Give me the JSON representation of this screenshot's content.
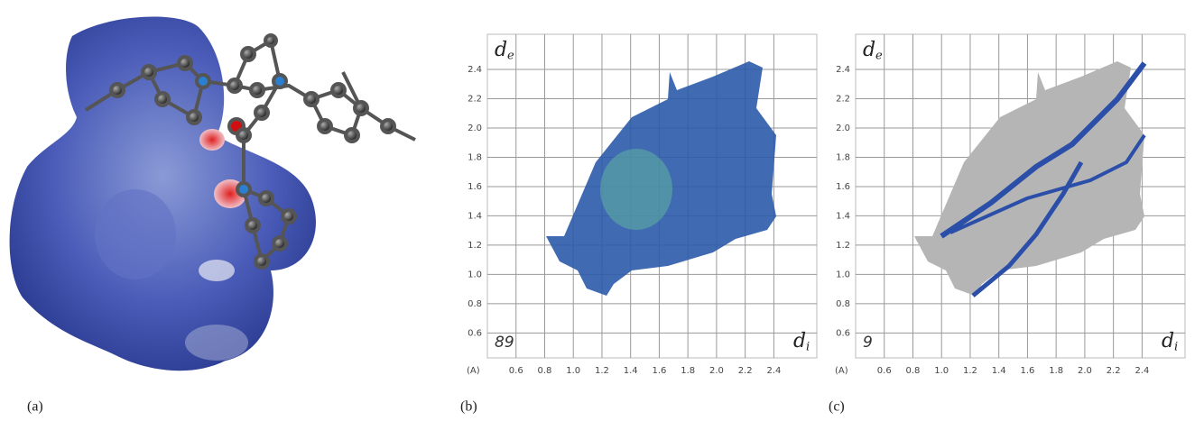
{
  "panels": [
    {
      "label": "(a)"
    },
    {
      "label": "(b)",
      "y_axis_label": "d",
      "y_axis_sub": "e",
      "x_axis_label": "d",
      "x_axis_sub": "i",
      "unit": "(A)",
      "percent": 89,
      "xlim": [
        0.4,
        2.7
      ],
      "ylim": [
        0.43,
        2.64
      ],
      "xticks": [
        0.6,
        0.8,
        {
          "value": 1,
          "label": "1.0"
        },
        1.2,
        1.4,
        1.6,
        1.8,
        {
          "value": 2,
          "label": "2.0"
        },
        2.2,
        2.4
      ],
      "yticks": [
        0.6,
        0.8,
        {
          "value": 1,
          "label": "1.0"
        },
        1.2,
        1.4,
        1.6,
        1.8,
        {
          "value": 2,
          "label": "2.0"
        },
        2.2,
        2.4
      ]
    },
    {
      "label": "(c)",
      "y_axis_label": "d",
      "y_axis_sub": "e",
      "x_axis_label": "d",
      "x_axis_sub": "i",
      "unit": "(A)",
      "percent": 9,
      "xlim": [
        0.4,
        2.7
      ],
      "ylim": [
        0.43,
        2.64
      ],
      "xticks": [
        0.6,
        0.8,
        {
          "value": 1,
          "label": "1.0"
        },
        1.2,
        1.4,
        1.6,
        1.8,
        {
          "value": 2,
          "label": "2.0"
        },
        2.2,
        2.4
      ],
      "yticks": [
        0.6,
        0.8,
        {
          "value": 1,
          "label": "1.0"
        },
        1.2,
        1.4,
        1.6,
        1.8,
        {
          "value": 2,
          "label": "2.0"
        },
        2.2,
        2.4
      ]
    }
  ]
}
